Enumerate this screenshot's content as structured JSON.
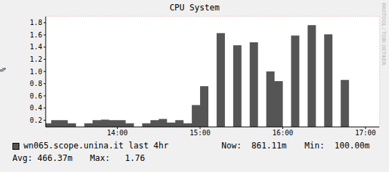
{
  "chart_data": {
    "type": "area",
    "title": "CPU System",
    "y_label": "%",
    "watermark": "RRDTOOL / TOBI OETIKER",
    "line_style": "step",
    "grid": true,
    "xlim": [
      788,
      1030
    ],
    "xticks": [
      {
        "value": 840,
        "label": "14:00"
      },
      {
        "value": 900,
        "label": "15:00"
      },
      {
        "value": 960,
        "label": "16:00"
      },
      {
        "value": 1020,
        "label": "17:00"
      }
    ],
    "ylim": [
      0.09,
      1.9
    ],
    "yticks": [
      0.2,
      0.4,
      0.6,
      0.8,
      {
        "value": 1,
        "label": "1.0"
      },
      1.2,
      1.4,
      1.6,
      1.8
    ],
    "x": [
      786,
      792,
      798,
      804,
      810,
      816,
      822,
      828,
      834,
      840,
      846,
      852,
      858,
      864,
      870,
      876,
      882,
      888,
      894,
      900,
      906,
      912,
      918,
      924,
      930,
      936,
      942,
      948,
      954,
      960,
      966,
      972,
      978,
      984,
      990,
      996,
      1002,
      1008,
      1014,
      1020,
      1026
    ],
    "series": [
      {
        "name": "wn065.scope.unina.it last 4hr",
        "color": "#555555",
        "values": [
          0.15,
          0.2,
          0.2,
          0.15,
          null,
          0.15,
          0.2,
          0.21,
          0.2,
          0.2,
          0.15,
          null,
          0.15,
          0.2,
          0.22,
          0.16,
          0.2,
          0.15,
          0.45,
          0.76,
          null,
          1.63,
          null,
          1.43,
          null,
          1.48,
          null,
          1.0,
          0.84,
          null,
          1.59,
          null,
          1.76,
          null,
          1.61,
          null,
          0.86,
          null,
          null,
          null,
          null
        ]
      }
    ],
    "legend_stats": [
      {
        "label": "Now:",
        "value": "861.11m"
      },
      {
        "label": "Min:",
        "value": "100.00m"
      },
      {
        "label": "Avg:",
        "value": "466.37m"
      },
      {
        "label": "Max:",
        "value": "1.76"
      }
    ]
  }
}
